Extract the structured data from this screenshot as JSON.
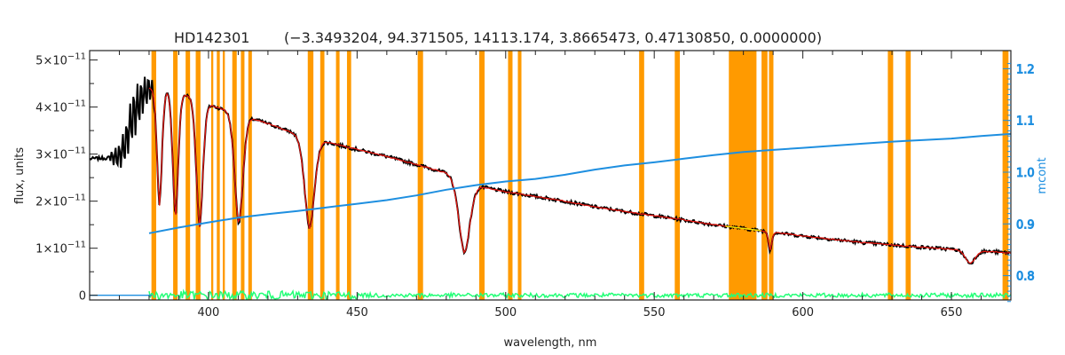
{
  "chart_data": {
    "type": "line",
    "title": "HD142301",
    "subtitle": "(−3.3493204, 94.371505, 14113.174, 3.8665473, 0.47130850, 0.0000000)",
    "xlabel": "wavelength, nm",
    "ylabel": "flux, units",
    "y2label": "mcont",
    "xlim": [
      360,
      670
    ],
    "ylim": [
      -0.1,
      5.2
    ],
    "y2lim": [
      0.753,
      1.235
    ],
    "x_ticks": [
      400,
      450,
      500,
      550,
      600,
      650
    ],
    "y_ticks": [
      {
        "value": 0,
        "mantissa": "0",
        "exponent": ""
      },
      {
        "value": 1,
        "mantissa": "1×10",
        "exponent": "−11"
      },
      {
        "value": 2,
        "mantissa": "2×10",
        "exponent": "−11"
      },
      {
        "value": 3,
        "mantissa": "3×10",
        "exponent": "−11"
      },
      {
        "value": 4,
        "mantissa": "4×10",
        "exponent": "−11"
      },
      {
        "value": 5,
        "mantissa": "5×10",
        "exponent": "−11"
      }
    ],
    "y2_ticks": [
      "0.8",
      "0.9",
      "1.0",
      "1.1",
      "1.2"
    ],
    "y_unit_exponent": -11,
    "grid": false,
    "colors": {
      "observed": "#000000",
      "model": "#e0150f",
      "mask": "#ff9a00",
      "residual": "#22ff77",
      "mcont": "#1e8fe0",
      "yellow_fit": "#f2e600"
    },
    "masked_regions": [
      [
        380.8,
        382.4
      ],
      [
        388.1,
        389.6
      ],
      [
        392.3,
        393.8
      ],
      [
        395.7,
        397.3
      ],
      [
        400.9,
        401.6
      ],
      [
        402.8,
        403.8
      ],
      [
        404.8,
        405.5
      ],
      [
        408.0,
        409.5
      ],
      [
        410.9,
        412.1
      ],
      [
        413.4,
        414.6
      ],
      [
        433.4,
        435.3
      ],
      [
        437.6,
        439.0
      ],
      [
        442.9,
        444.1
      ],
      [
        446.6,
        448.0
      ],
      [
        470.4,
        472.2
      ],
      [
        491.1,
        492.9
      ],
      [
        500.8,
        502.3
      ],
      [
        504.1,
        505.3
      ],
      [
        544.9,
        546.6
      ],
      [
        556.9,
        558.6
      ],
      [
        575.1,
        584.4
      ],
      [
        586.1,
        588.1
      ],
      [
        588.6,
        590.1
      ],
      [
        628.6,
        630.4
      ],
      [
        634.6,
        636.3
      ],
      [
        667.2,
        669.2
      ]
    ],
    "series": [
      {
        "name": "observed",
        "continuum": [
          [
            360,
            2.9
          ],
          [
            366,
            2.92
          ],
          [
            370,
            2.95
          ],
          [
            372,
            3.2
          ],
          [
            374,
            3.7
          ],
          [
            376,
            4.0
          ],
          [
            378,
            4.25
          ],
          [
            380,
            4.4
          ],
          [
            385,
            4.35
          ],
          [
            390,
            4.3
          ],
          [
            395,
            4.2
          ],
          [
            400,
            4.05
          ],
          [
            405,
            3.95
          ],
          [
            410,
            3.85
          ],
          [
            415,
            3.75
          ],
          [
            420,
            3.65
          ],
          [
            430,
            3.42
          ],
          [
            440,
            3.25
          ],
          [
            450,
            3.1
          ],
          [
            460,
            2.95
          ],
          [
            470,
            2.78
          ],
          [
            480,
            2.6
          ],
          [
            490,
            2.33
          ],
          [
            500,
            2.2
          ],
          [
            510,
            2.1
          ],
          [
            520,
            2.0
          ],
          [
            530,
            1.88
          ],
          [
            540,
            1.78
          ],
          [
            550,
            1.69
          ],
          [
            560,
            1.6
          ],
          [
            570,
            1.5
          ],
          [
            580,
            1.42
          ],
          [
            590,
            1.34
          ],
          [
            600,
            1.26
          ],
          [
            610,
            1.19
          ],
          [
            620,
            1.12
          ],
          [
            630,
            1.07
          ],
          [
            640,
            1.02
          ],
          [
            650,
            0.98
          ],
          [
            660,
            0.94
          ],
          [
            670,
            0.9
          ]
        ],
        "lines": [
          {
            "center": 383.5,
            "depth": 2.45,
            "width": 0.9
          },
          {
            "center": 388.9,
            "depth": 2.65,
            "width": 1.0
          },
          {
            "center": 397.0,
            "depth": 2.7,
            "width": 1.2
          },
          {
            "center": 410.2,
            "depth": 2.35,
            "width": 1.5
          },
          {
            "center": 434.0,
            "depth": 1.95,
            "width": 1.8
          },
          {
            "center": 486.1,
            "depth": 1.55,
            "width": 2.0
          },
          {
            "center": 589.0,
            "depth": 0.4,
            "width": 0.6
          },
          {
            "center": 656.3,
            "depth": 0.28,
            "width": 1.8
          }
        ]
      },
      {
        "name": "model",
        "x_range": [
          380,
          670
        ]
      },
      {
        "name": "residual",
        "x_range": [
          380,
          670
        ],
        "level": 0.0
      },
      {
        "name": "mcont",
        "axis": "right",
        "points": [
          [
            380,
            0.882
          ],
          [
            390,
            0.893
          ],
          [
            400,
            0.903
          ],
          [
            410,
            0.912
          ],
          [
            420,
            0.919
          ],
          [
            430,
            0.925
          ],
          [
            440,
            0.932
          ],
          [
            450,
            0.939
          ],
          [
            460,
            0.946
          ],
          [
            470,
            0.955
          ],
          [
            480,
            0.966
          ],
          [
            490,
            0.975
          ],
          [
            500,
            0.982
          ],
          [
            510,
            0.987
          ],
          [
            520,
            0.995
          ],
          [
            530,
            1.005
          ],
          [
            540,
            1.013
          ],
          [
            550,
            1.019
          ],
          [
            560,
            1.026
          ],
          [
            570,
            1.033
          ],
          [
            580,
            1.039
          ],
          [
            590,
            1.043
          ],
          [
            600,
            1.047
          ],
          [
            610,
            1.051
          ],
          [
            620,
            1.055
          ],
          [
            630,
            1.059
          ],
          [
            640,
            1.062
          ],
          [
            650,
            1.065
          ],
          [
            660,
            1.07
          ],
          [
            670,
            1.074
          ]
        ]
      }
    ]
  }
}
